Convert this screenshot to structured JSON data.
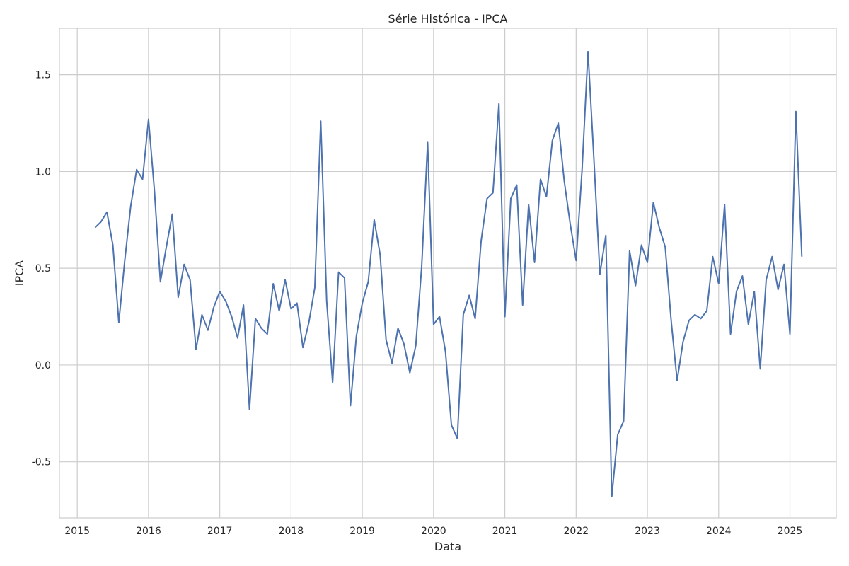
{
  "chart_data": {
    "type": "line",
    "title": "Série Histórica - IPCA",
    "xlabel": "Data",
    "ylabel": "IPCA",
    "xlim": [
      2014.75,
      2025.65
    ],
    "ylim": [
      -0.79,
      1.74
    ],
    "grid": true,
    "colors": {
      "line": "#4c72b0",
      "grid": "#cccccc",
      "frame": "#cccccc",
      "background": "#ffffff"
    },
    "x_ticks": [
      {
        "value": 2015,
        "label": "2015"
      },
      {
        "value": 2016,
        "label": "2016"
      },
      {
        "value": 2017,
        "label": "2017"
      },
      {
        "value": 2018,
        "label": "2018"
      },
      {
        "value": 2019,
        "label": "2019"
      },
      {
        "value": 2020,
        "label": "2020"
      },
      {
        "value": 2021,
        "label": "2021"
      },
      {
        "value": 2022,
        "label": "2022"
      },
      {
        "value": 2023,
        "label": "2023"
      },
      {
        "value": 2024,
        "label": "2024"
      },
      {
        "value": 2025,
        "label": "2025"
      }
    ],
    "y_ticks": [
      {
        "value": 1.5,
        "label": "1.5"
      },
      {
        "value": 1.0,
        "label": "1.0"
      },
      {
        "value": 0.5,
        "label": "0.5"
      },
      {
        "value": 0.0,
        "label": "0.0"
      },
      {
        "value": -0.5,
        "label": "-0.5"
      }
    ],
    "series": [
      {
        "start": "2015-04",
        "values": [
          0.71,
          0.74,
          0.79,
          0.62,
          0.22,
          0.54,
          0.82,
          1.01,
          0.96,
          1.27,
          0.9,
          0.43,
          0.61,
          0.78,
          0.35,
          0.52,
          0.44,
          0.08,
          0.26,
          0.18,
          0.3,
          0.38,
          0.33,
          0.25,
          0.14,
          0.31,
          -0.23,
          0.24,
          0.19,
          0.16,
          0.42,
          0.28,
          0.44,
          0.29,
          0.32,
          0.09,
          0.22,
          0.4,
          1.26,
          0.33,
          -0.09,
          0.48,
          0.45,
          -0.21,
          0.15,
          0.32,
          0.43,
          0.75,
          0.57,
          0.13,
          0.01,
          0.19,
          0.11,
          -0.04,
          0.1,
          0.51,
          1.15,
          0.21,
          0.25,
          0.07,
          -0.31,
          -0.38,
          0.26,
          0.36,
          0.24,
          0.64,
          0.86,
          0.89,
          1.35,
          0.25,
          0.86,
          0.93,
          0.31,
          0.83,
          0.53,
          0.96,
          0.87,
          1.16,
          1.25,
          0.95,
          0.73,
          0.54,
          1.01,
          1.62,
          1.06,
          0.47,
          0.67,
          -0.68,
          -0.36,
          -0.29,
          0.59,
          0.41,
          0.62,
          0.53,
          0.84,
          0.71,
          0.61,
          0.23,
          -0.08,
          0.12,
          0.23,
          0.26,
          0.24,
          0.28,
          0.56,
          0.42,
          0.83,
          0.16,
          0.38,
          0.46,
          0.21,
          0.38,
          -0.02,
          0.44,
          0.56,
          0.39,
          0.52,
          0.16,
          1.31,
          0.56
        ]
      }
    ]
  }
}
